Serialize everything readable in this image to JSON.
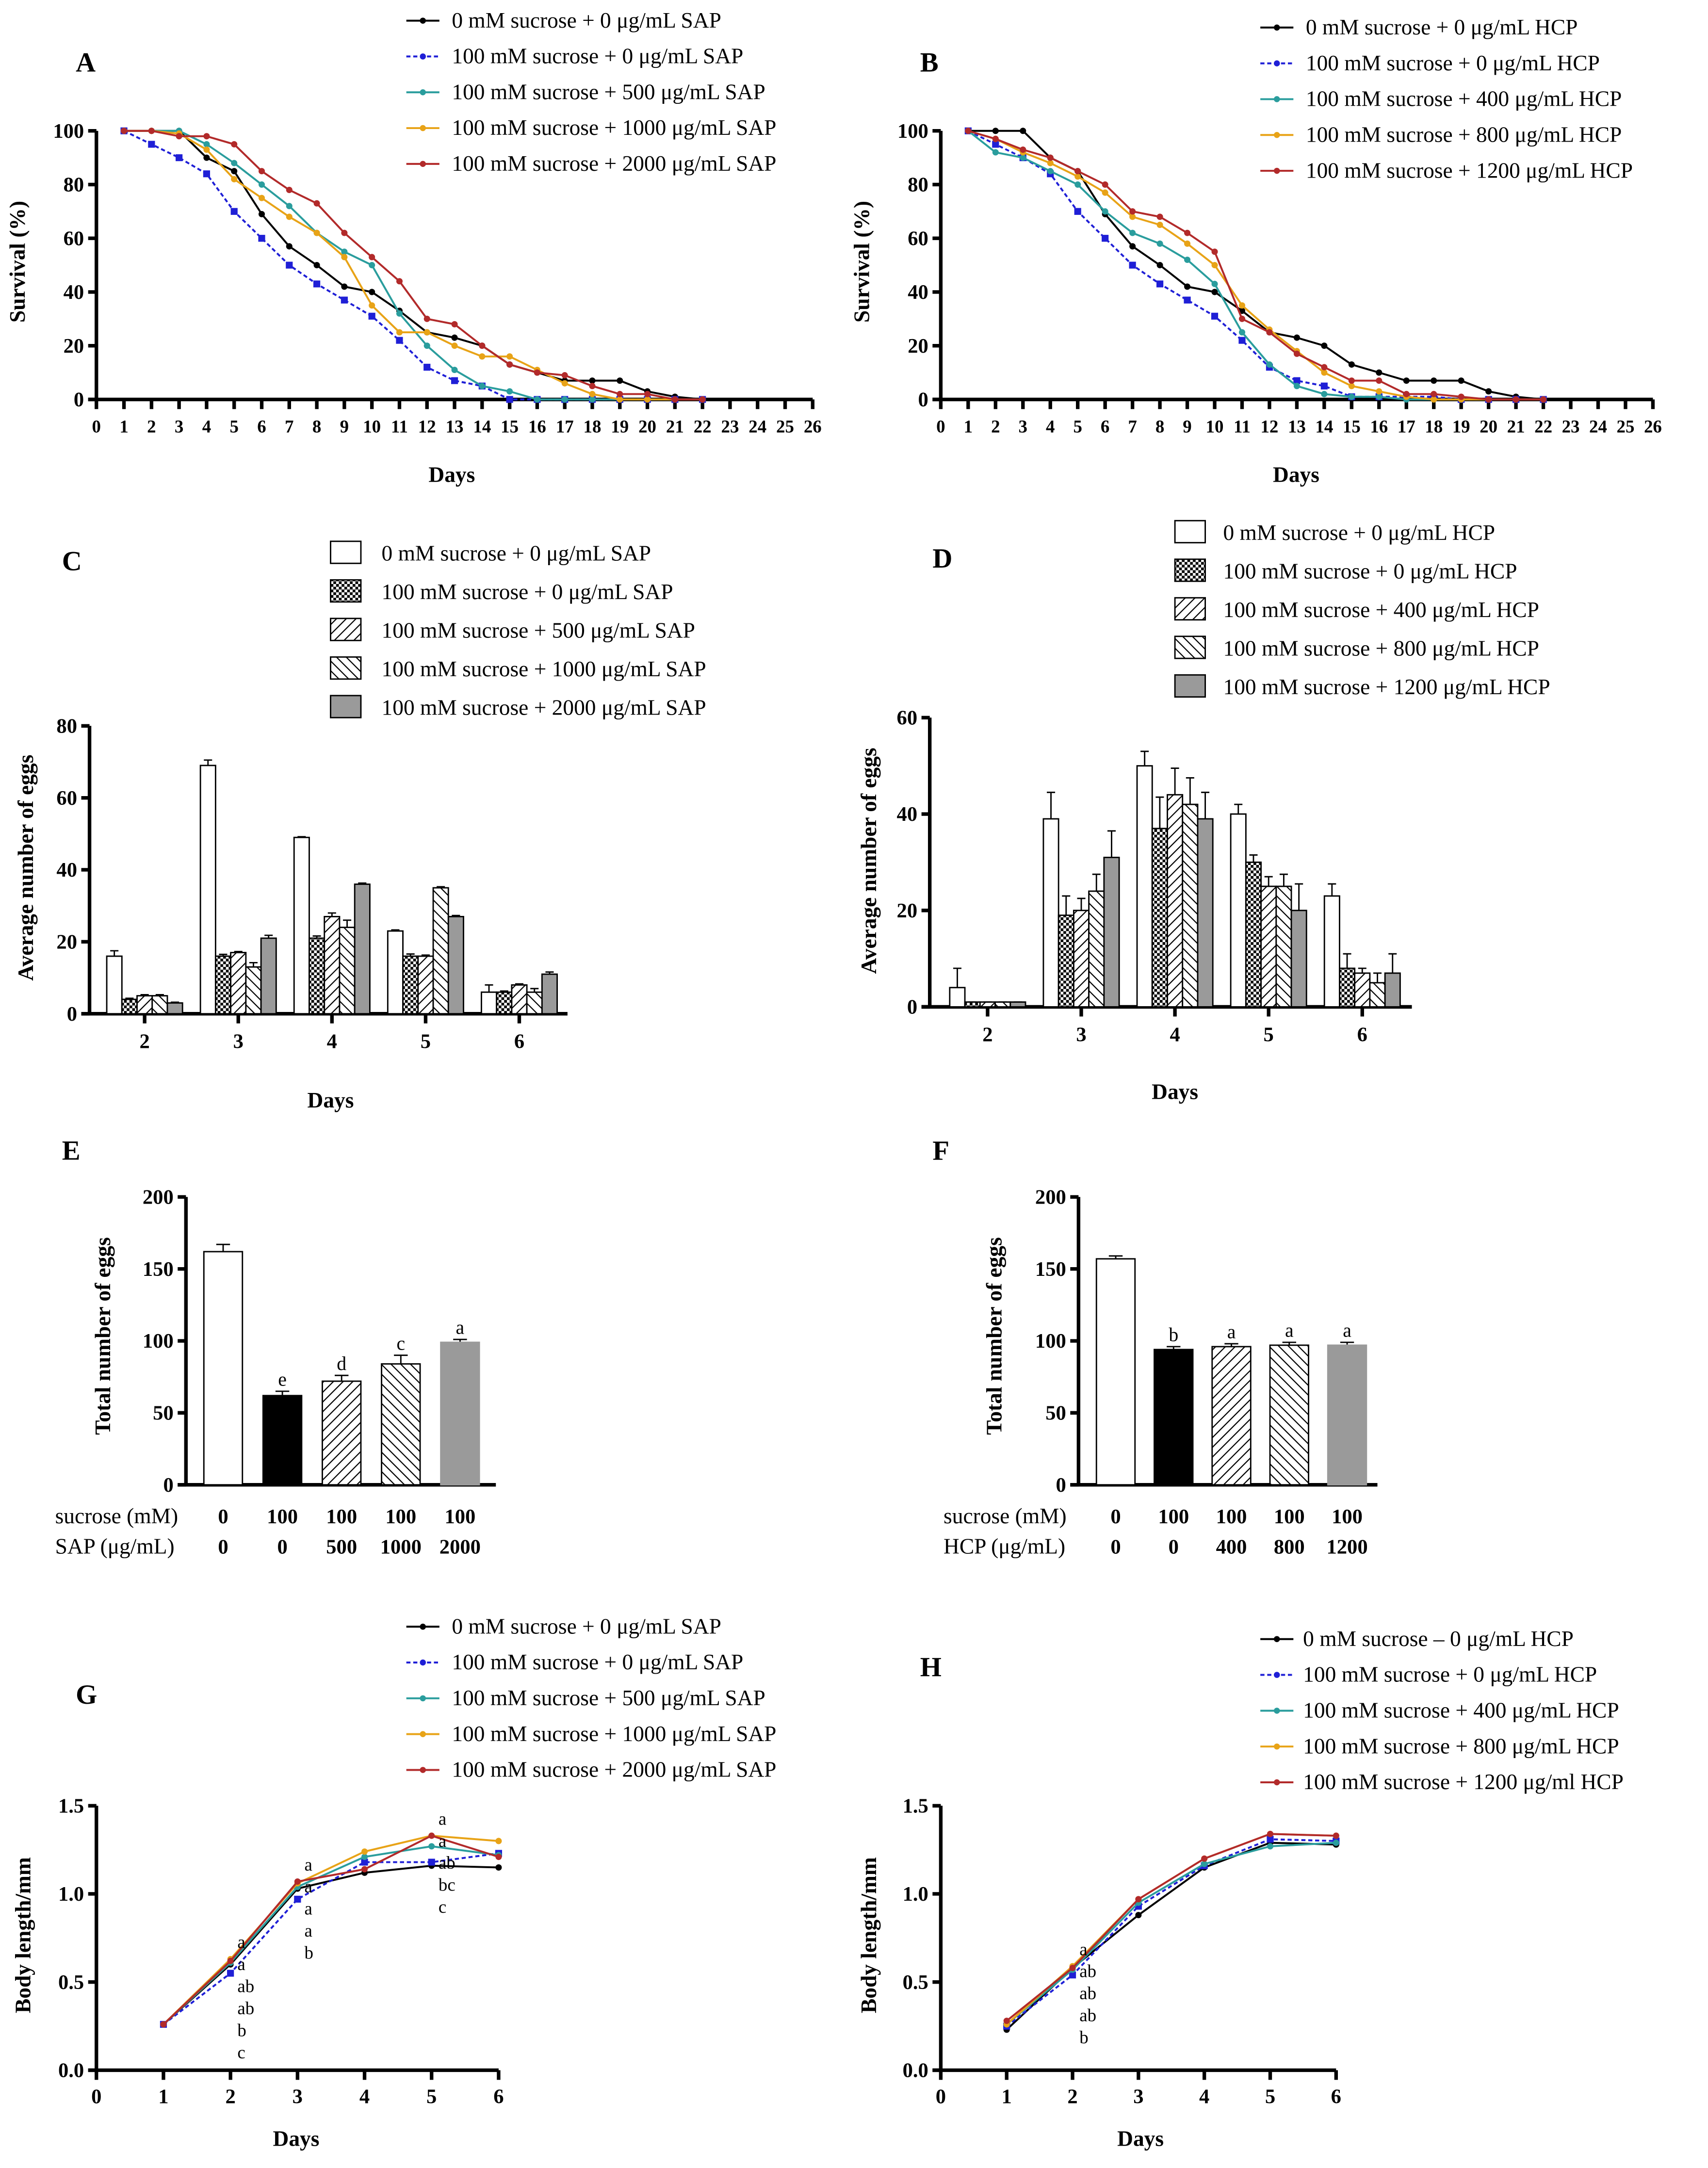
{
  "chart_data": [
    {
      "panel": "A",
      "type": "line",
      "xlabel": "Days",
      "ylabel": "Survival (%)",
      "xlim": [
        0,
        26
      ],
      "ylim": [
        0,
        100
      ],
      "xticks": [
        "0",
        "1",
        "2",
        "3",
        "4",
        "5",
        "6",
        "7",
        "8",
        "9",
        "10",
        "11",
        "12",
        "13",
        "14",
        "15",
        "16",
        "17",
        "18",
        "19",
        "20",
        "21",
        "22",
        "23",
        "24",
        "25",
        "26"
      ],
      "yticks": [
        "0",
        "20",
        "40",
        "60",
        "80",
        "100"
      ],
      "x": [
        1,
        2,
        3,
        4,
        5,
        6,
        7,
        8,
        9,
        10,
        11,
        12,
        13,
        14,
        15,
        16,
        17,
        18,
        19,
        20,
        21,
        22
      ],
      "series": [
        {
          "name": "0 mM sucrose + 0 μg/mL SAP",
          "color": "#000000",
          "values": [
            100,
            100,
            100,
            90,
            85,
            69,
            57,
            50,
            42,
            40,
            33,
            25,
            23,
            20,
            13,
            10,
            7,
            7,
            7,
            3,
            1,
            0
          ]
        },
        {
          "name": "100 mM sucrose + 0 μg/mL SAP",
          "color": "#1f1fd6",
          "dashed": true,
          "values": [
            100,
            95,
            90,
            84,
            70,
            60,
            50,
            43,
            37,
            31,
            22,
            12,
            7,
            5,
            0,
            0,
            0,
            0,
            0,
            0,
            0,
            0
          ]
        },
        {
          "name": "100 mM sucrose + 500 μg/mL SAP",
          "color": "#2a9d9d",
          "values": [
            100,
            100,
            100,
            95,
            88,
            80,
            72,
            62,
            55,
            50,
            32,
            20,
            11,
            5,
            3,
            0,
            0,
            0,
            0,
            0,
            0,
            0
          ]
        },
        {
          "name": "100 mM sucrose + 1000 μg/mL SAP",
          "color": "#e8a317",
          "values": [
            100,
            100,
            99,
            93,
            82,
            75,
            68,
            62,
            53,
            35,
            25,
            25,
            20,
            16,
            16,
            11,
            6,
            2,
            0,
            0,
            0,
            0
          ]
        },
        {
          "name": "100 mM sucrose + 2000 μg/mL SAP",
          "color": "#b22a2a",
          "values": [
            100,
            100,
            98,
            98,
            95,
            85,
            78,
            73,
            62,
            53,
            44,
            30,
            28,
            20,
            13,
            10,
            9,
            5,
            2,
            2,
            0,
            0
          ]
        }
      ]
    },
    {
      "panel": "B",
      "type": "line",
      "xlabel": "Days",
      "ylabel": "Survival (%)",
      "xlim": [
        0,
        26
      ],
      "ylim": [
        0,
        100
      ],
      "xticks": [
        "0",
        "1",
        "2",
        "3",
        "4",
        "5",
        "6",
        "7",
        "8",
        "9",
        "10",
        "11",
        "12",
        "13",
        "14",
        "15",
        "16",
        "17",
        "18",
        "19",
        "20",
        "21",
        "22",
        "23",
        "24",
        "25",
        "26"
      ],
      "yticks": [
        "0",
        "20",
        "40",
        "60",
        "80",
        "100"
      ],
      "x": [
        1,
        2,
        3,
        4,
        5,
        6,
        7,
        8,
        9,
        10,
        11,
        12,
        13,
        14,
        15,
        16,
        17,
        18,
        19,
        20,
        21,
        22
      ],
      "series": [
        {
          "name": "0 mM sucrose + 0 μg/mL HCP",
          "color": "#000000",
          "values": [
            100,
            100,
            100,
            90,
            85,
            69,
            57,
            50,
            42,
            40,
            33,
            25,
            23,
            20,
            13,
            10,
            7,
            7,
            7,
            3,
            1,
            0
          ]
        },
        {
          "name": "100 mM sucrose + 0 μg/mL HCP",
          "color": "#1f1fd6",
          "dashed": true,
          "values": [
            100,
            95,
            90,
            84,
            70,
            60,
            50,
            43,
            37,
            31,
            22,
            12,
            7,
            5,
            1,
            1,
            1,
            1,
            0,
            0,
            0,
            0
          ]
        },
        {
          "name": "100 mM sucrose + 400 μg/mL HCP",
          "color": "#2a9d9d",
          "values": [
            100,
            92,
            90,
            85,
            80,
            70,
            62,
            58,
            52,
            43,
            25,
            13,
            5,
            2,
            1,
            1,
            0,
            0,
            0,
            0,
            0,
            0
          ]
        },
        {
          "name": "100 mM sucrose + 800 μg/mL HCP",
          "color": "#e8a317",
          "values": [
            100,
            97,
            92,
            88,
            83,
            77,
            68,
            65,
            58,
            50,
            35,
            26,
            18,
            10,
            5,
            3,
            1,
            0,
            0,
            0,
            0,
            0
          ]
        },
        {
          "name": "100 mM sucrose + 1200 μg/mL HCP",
          "color": "#b22a2a",
          "values": [
            100,
            97,
            93,
            90,
            85,
            80,
            70,
            68,
            62,
            55,
            30,
            25,
            17,
            12,
            7,
            7,
            2,
            2,
            1,
            0,
            0,
            0
          ]
        }
      ]
    },
    {
      "panel": "C",
      "type": "bar",
      "xlabel": "Days",
      "ylabel": "Average number of eggs",
      "ylim": [
        0,
        80
      ],
      "yticks": [
        "0",
        "20",
        "40",
        "60",
        "80"
      ],
      "categories": [
        "2",
        "3",
        "4",
        "5",
        "6"
      ],
      "series": [
        {
          "name": "0 mM sucrose + 0 μg/mL SAP",
          "fill": "white",
          "values": [
            16,
            69,
            49,
            23,
            6
          ],
          "error": [
            1.5,
            1.5,
            0.2,
            0.3,
            2
          ]
        },
        {
          "name": "100 mM sucrose + 0 μg/mL SAP",
          "fill": "checker",
          "values": [
            4,
            16,
            21,
            16,
            6
          ],
          "error": [
            0.3,
            0.5,
            0.6,
            0.6,
            0.3
          ]
        },
        {
          "name": "100 mM sucrose + 500 μg/mL SAP",
          "fill": "diag-right",
          "values": [
            5,
            17,
            27,
            16,
            8
          ],
          "error": [
            0.3,
            0.3,
            1,
            0.3,
            0.3
          ]
        },
        {
          "name": "100 mM sucrose + 1000 μg/mL SAP",
          "fill": "diag-left",
          "values": [
            5,
            13,
            24,
            35,
            6
          ],
          "error": [
            0.3,
            1.2,
            2,
            0.3,
            1
          ]
        },
        {
          "name": "100 mM sucrose + 2000 μg/mL SAP",
          "fill": "gray",
          "values": [
            3,
            21,
            36,
            27,
            11
          ],
          "error": [
            0.2,
            0.8,
            0.3,
            0.3,
            0.6
          ]
        }
      ]
    },
    {
      "panel": "D",
      "type": "bar",
      "xlabel": "Days",
      "ylabel": "Average number of eggs",
      "ylim": [
        0,
        60
      ],
      "yticks": [
        "0",
        "20",
        "40",
        "60"
      ],
      "categories": [
        "2",
        "3",
        "4",
        "5",
        "6"
      ],
      "series": [
        {
          "name": "0 mM sucrose + 0 μg/mL HCP",
          "fill": "white",
          "values": [
            4,
            39,
            50,
            40,
            23
          ],
          "error": [
            4,
            5.5,
            3,
            2,
            2.5
          ]
        },
        {
          "name": "100 mM sucrose + 0 μg/mL HCP",
          "fill": "checker",
          "values": [
            1,
            19,
            37,
            30,
            8
          ],
          "error": [
            0,
            4,
            6.5,
            1.5,
            3
          ]
        },
        {
          "name": "100 mM sucrose + 400 μg/mL HCP",
          "fill": "diag-right",
          "values": [
            1,
            20,
            44,
            25,
            7
          ],
          "error": [
            0,
            2.5,
            5.5,
            2,
            1
          ]
        },
        {
          "name": "100 mM sucrose + 800 μg/mL HCP",
          "fill": "diag-left",
          "values": [
            1,
            24,
            42,
            25,
            5
          ],
          "error": [
            0,
            3.5,
            5.5,
            2.5,
            2
          ]
        },
        {
          "name": "100 mM sucrose + 1200 μg/mL HCP",
          "fill": "gray",
          "values": [
            1,
            31,
            39,
            20,
            7
          ],
          "error": [
            0,
            5.5,
            5.5,
            5.5,
            4
          ]
        }
      ]
    },
    {
      "panel": "E",
      "type": "bar",
      "ylabel": "Total number of eggs",
      "ylim": [
        0,
        200
      ],
      "yticks": [
        "0",
        "50",
        "100",
        "150",
        "200"
      ],
      "values": [
        162,
        62,
        72,
        84,
        99
      ],
      "error": [
        5,
        3,
        4,
        6,
        2
      ],
      "fills": [
        "white",
        "black",
        "diag-right",
        "diag-left",
        "gray"
      ],
      "significance": [
        "",
        "e",
        "d",
        "c",
        "a"
      ],
      "group_rows": [
        {
          "label": "sucrose (mM)",
          "values": [
            "0",
            "100",
            "100",
            "100",
            "100"
          ]
        },
        {
          "label": "SAP (μg/mL)",
          "values": [
            "0",
            "0",
            "500",
            "1000",
            "2000"
          ]
        }
      ]
    },
    {
      "panel": "F",
      "type": "bar",
      "ylabel": "Total number of eggs",
      "ylim": [
        0,
        200
      ],
      "yticks": [
        "0",
        "50",
        "100",
        "150",
        "200"
      ],
      "values": [
        157,
        94,
        96,
        97,
        97
      ],
      "error": [
        2,
        2,
        2,
        2,
        2
      ],
      "fills": [
        "white",
        "black",
        "diag-right",
        "diag-left",
        "gray"
      ],
      "significance": [
        "",
        "b",
        "a",
        "a",
        "a"
      ],
      "group_rows": [
        {
          "label": "sucrose (mM)",
          "values": [
            "0",
            "100",
            "100",
            "100",
            "100"
          ]
        },
        {
          "label": "HCP (μg/mL)",
          "values": [
            "0",
            "0",
            "400",
            "800",
            "1200"
          ]
        }
      ]
    },
    {
      "panel": "G",
      "type": "line",
      "xlabel": "Days",
      "ylabel": "Body length/mm",
      "xlim": [
        0,
        6
      ],
      "ylim": [
        0,
        1.5
      ],
      "xticks": [
        "0",
        "1",
        "2",
        "3",
        "4",
        "5",
        "6"
      ],
      "yticks": [
        "0.0",
        "0.5",
        "1.0",
        "1.5"
      ],
      "x": [
        1,
        2,
        3,
        4,
        5,
        6
      ],
      "series": [
        {
          "name": "0 mM sucrose + 0 μg/mL SAP",
          "color": "#000000",
          "values": [
            0.26,
            0.6,
            1.03,
            1.12,
            1.16,
            1.15
          ]
        },
        {
          "name": "100 mM sucrose + 0 μg/mL SAP",
          "color": "#1f1fd6",
          "dashed": true,
          "values": [
            0.26,
            0.55,
            0.97,
            1.18,
            1.18,
            1.23
          ]
        },
        {
          "name": "100 mM sucrose + 500 μg/mL SAP",
          "color": "#2a9d9d",
          "values": [
            0.26,
            0.61,
            1.04,
            1.21,
            1.27,
            1.22
          ]
        },
        {
          "name": "100 mM sucrose + 1000 μg/mL SAP",
          "color": "#e8a317",
          "values": [
            0.26,
            0.63,
            1.06,
            1.24,
            1.33,
            1.3
          ]
        },
        {
          "name": "100 mM sucrose + 2000 μg/mL SAP",
          "color": "#b22a2a",
          "values": [
            0.26,
            0.62,
            1.07,
            1.14,
            1.33,
            1.21
          ]
        }
      ],
      "annotations": [
        {
          "x": 2,
          "labels": [
            "a",
            "a",
            "ab",
            "ab",
            "b",
            "c"
          ]
        },
        {
          "x": 3,
          "labels": [
            "a",
            "a",
            "a",
            "a",
            "b"
          ]
        },
        {
          "x": 5,
          "labels": [
            "a",
            "a",
            "ab",
            "bc",
            "c"
          ]
        }
      ]
    },
    {
      "panel": "H",
      "type": "line",
      "xlabel": "Days",
      "ylabel": "Body length/mm",
      "xlim": [
        0,
        6
      ],
      "ylim": [
        0,
        1.5
      ],
      "xticks": [
        "0",
        "1",
        "2",
        "3",
        "4",
        "5",
        "6"
      ],
      "yticks": [
        "0.0",
        "0.5",
        "1.0",
        "1.5"
      ],
      "x": [
        1,
        2,
        3,
        4,
        5,
        6
      ],
      "series": [
        {
          "name": "0 mM sucrose – 0 μg/mL HCP",
          "color": "#000000",
          "values": [
            0.23,
            0.58,
            0.88,
            1.15,
            1.29,
            1.28
          ]
        },
        {
          "name": "100 mM sucrose + 0 μg/mL HCP",
          "color": "#1f1fd6",
          "dashed": true,
          "values": [
            0.25,
            0.54,
            0.93,
            1.16,
            1.31,
            1.3
          ]
        },
        {
          "name": "100 mM sucrose + 400 μg/mL HCP",
          "color": "#2a9d9d",
          "values": [
            0.26,
            0.57,
            0.95,
            1.17,
            1.27,
            1.29
          ]
        },
        {
          "name": "100 mM sucrose + 800 μg/mL HCP",
          "color": "#e8a317",
          "values": [
            0.26,
            0.59,
            0.97,
            1.2,
            1.34,
            1.33
          ]
        },
        {
          "name": "100 mM sucrose + 1200 μg/ml HCP",
          "color": "#b22a2a",
          "values": [
            0.28,
            0.58,
            0.97,
            1.2,
            1.34,
            1.33
          ]
        }
      ],
      "annotations": [
        {
          "x": 2,
          "labels": [
            "a",
            "ab",
            "ab",
            "ab",
            "b"
          ]
        }
      ]
    }
  ]
}
